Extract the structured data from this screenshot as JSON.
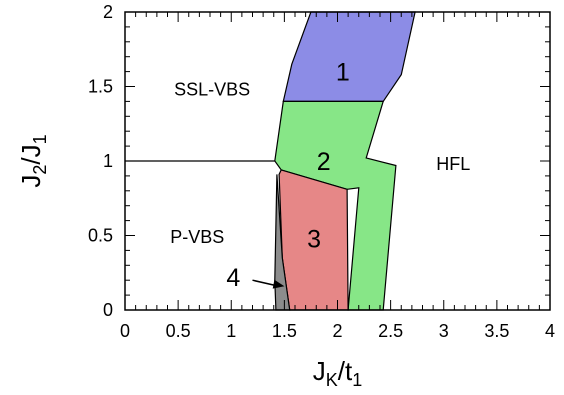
{
  "chart_data": {
    "type": "area",
    "xlabel": "J_K/t_1",
    "ylabel": "J_2/J_1",
    "xlim": [
      0,
      4
    ],
    "ylim": [
      0,
      2
    ],
    "x_ticks": [
      "0",
      "0.5",
      "1",
      "1.5",
      "2",
      "2.5",
      "3",
      "3.5",
      "4"
    ],
    "y_ticks": [
      "0",
      "0.5",
      "1",
      "1.5",
      "2"
    ],
    "grid": false,
    "colors": {
      "region1": "#8c8ce6",
      "region2": "#87e687",
      "region3": "#e68787",
      "region4": "#8c8c8c"
    },
    "phase_labels": [
      {
        "text": "SSL-VBS",
        "x": 0.82,
        "y": 1.48
      },
      {
        "text": "P-VBS",
        "x": 0.68,
        "y": 0.49
      },
      {
        "text": "HFL",
        "x": 3.09,
        "y": 0.98
      }
    ],
    "regions": [
      {
        "label": "1",
        "label_x": 2.05,
        "label_y": 1.6,
        "polygon": [
          [
            1.75,
            2.0
          ],
          [
            2.73,
            2.0
          ],
          [
            2.6,
            1.58
          ],
          [
            2.43,
            1.4
          ],
          [
            1.49,
            1.4
          ],
          [
            1.57,
            1.65
          ]
        ]
      },
      {
        "label": "2",
        "label_x": 1.87,
        "label_y": 1.0,
        "polygon": [
          [
            1.49,
            1.4
          ],
          [
            2.43,
            1.4
          ],
          [
            2.27,
            1.02
          ],
          [
            2.55,
            0.97
          ],
          [
            2.43,
            0.0
          ],
          [
            2.1,
            0.0
          ],
          [
            2.2,
            0.82
          ],
          [
            2.09,
            0.81
          ],
          [
            1.47,
            0.94
          ],
          [
            1.41,
            1.0
          ]
        ]
      },
      {
        "label": "3",
        "label_x": 1.78,
        "label_y": 0.48,
        "polygon": [
          [
            1.47,
            0.94
          ],
          [
            2.09,
            0.81
          ],
          [
            2.1,
            0.0
          ],
          [
            1.55,
            0.0
          ],
          [
            1.48,
            0.35
          ],
          [
            1.45,
            0.91
          ]
        ]
      },
      {
        "label": "4",
        "label_x": 1.02,
        "label_y": 0.22,
        "polygon": [
          [
            1.43,
            0.91
          ],
          [
            1.48,
            0.35
          ],
          [
            1.55,
            0.0
          ],
          [
            1.42,
            0.0
          ],
          [
            1.41,
            0.2
          ]
        ]
      }
    ],
    "boundary_line": [
      [
        0.0,
        1.0
      ],
      [
        1.41,
        1.0
      ]
    ],
    "arrow": {
      "from": [
        1.2,
        0.2
      ],
      "to": [
        1.5,
        0.16
      ]
    }
  }
}
